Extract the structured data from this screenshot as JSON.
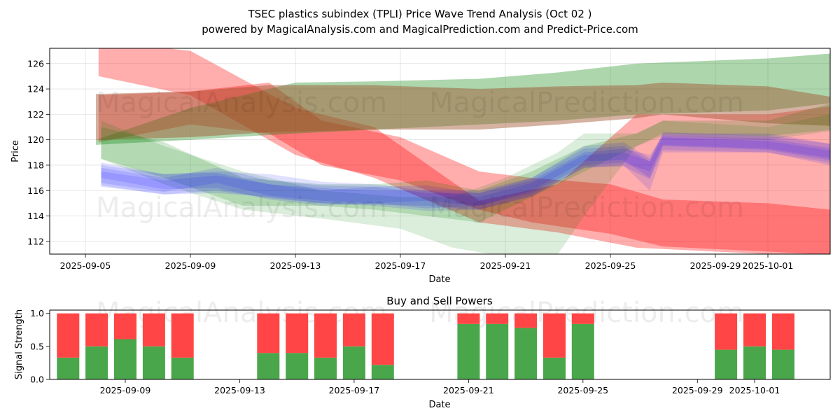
{
  "title_line1": "TSEC plastics subindex (TPLI) Price Wave Trend Analysis (Oct 02 )",
  "title_line2": "powered by MagicalAnalysis.com and MagicalPrediction.com and Predict-Price.com",
  "watermarks": [
    "MagicalAnalysis.com",
    "MagicalPrediction.com"
  ],
  "colors": {
    "red": "#ff0000",
    "green": "#008000",
    "blue": "#0000ff",
    "bar_green": "#4aa64a",
    "bar_red": "#ff4545"
  },
  "chart_data": [
    {
      "type": "area",
      "title": "",
      "xlabel": "Date",
      "ylabel": "Price",
      "x_ticks": [
        "2025-09-05",
        "2025-09-09",
        "2025-09-13",
        "2025-09-17",
        "2025-09-21",
        "2025-09-25",
        "2025-09-29",
        "2025-10-01"
      ],
      "y_ticks": [
        112,
        114,
        116,
        118,
        120,
        122,
        124,
        126
      ],
      "xlim": [
        "2025-09-03.6",
        "2025-10-03.8"
      ],
      "ylim": [
        111.0,
        127.2
      ],
      "grid": true,
      "bands": [
        {
          "color": "red",
          "opacity": 0.32,
          "x": [
            4.5,
            8,
            12,
            15,
            19,
            22,
            25,
            30,
            33.7
          ],
          "upper": [
            127.8,
            127.0,
            122.5,
            121.0,
            115.2,
            116.5,
            122.0,
            122.0,
            123.0
          ],
          "lower": [
            125.0,
            123.5,
            118.8,
            117.0,
            113.5,
            112.7,
            111.5,
            111.0,
            110.6
          ]
        },
        {
          "color": "red",
          "opacity": 0.32,
          "x": [
            4.5,
            8,
            11,
            13,
            16,
            19,
            21,
            24,
            26,
            30,
            33.8
          ],
          "upper": [
            123.5,
            123.8,
            124.5,
            121.5,
            120.2,
            117.5,
            117.0,
            116.5,
            115.3,
            115.0,
            114.2
          ],
          "lower": [
            119.8,
            121.2,
            120.5,
            118.0,
            116.8,
            114.5,
            113.5,
            112.6,
            111.6,
            111.2,
            110.8
          ]
        },
        {
          "color": "green",
          "opacity": 0.32,
          "x": [
            4.4,
            8,
            12,
            15,
            19,
            22,
            25,
            30,
            33.7
          ],
          "upper": [
            120.0,
            122.5,
            124.5,
            124.6,
            124.8,
            125.3,
            126.0,
            126.4,
            127.0
          ],
          "lower": [
            119.6,
            120.0,
            120.5,
            120.8,
            121.2,
            121.5,
            122.0,
            122.3,
            123.2
          ]
        },
        {
          "color": "brown",
          "opacity": 0.45,
          "x": [
            4.4,
            8,
            11,
            15,
            19,
            22,
            25,
            26,
            30,
            33.5
          ],
          "upper": [
            123.6,
            123.8,
            124.3,
            124.3,
            124.0,
            124.2,
            124.3,
            124.5,
            124.2,
            123.0
          ],
          "lower": [
            120.0,
            120.2,
            120.6,
            120.8,
            120.8,
            121.2,
            121.7,
            122.0,
            121.3,
            121.0
          ]
        },
        {
          "color": "green",
          "opacity": 0.14,
          "x": [
            4.6,
            7,
            10,
            13,
            16,
            18,
            20,
            22,
            23,
            25,
            26,
            30,
            33.5
          ],
          "upper": [
            121.5,
            119.5,
            117.5,
            116.0,
            115.5,
            115.5,
            117.0,
            119.0,
            120.5,
            120.5,
            121.5,
            121.0,
            122.5
          ],
          "lower": [
            118.5,
            116.5,
            114.5,
            113.8,
            113.0,
            111.5,
            110.8,
            111.0,
            114.0,
            119.5,
            120.3,
            120.0,
            121.0
          ]
        },
        {
          "color": "green",
          "opacity": 0.18,
          "x": [
            4.6,
            7,
            10,
            13,
            15,
            17,
            19,
            21,
            23,
            25,
            26,
            30,
            33.5
          ],
          "upper": [
            121.0,
            119.8,
            117.0,
            116.5,
            116.5,
            116.8,
            116.0,
            117.5,
            119.5,
            120.5,
            121.5,
            121.5,
            123.5
          ],
          "lower": [
            118.5,
            117.0,
            114.8,
            114.8,
            114.5,
            114.0,
            113.5,
            115.5,
            117.5,
            119.5,
            120.5,
            120.3,
            121.0
          ]
        },
        {
          "color": "blue",
          "opacity": 0.12,
          "x": [
            4.6,
            7,
            9,
            11,
            13,
            15,
            17,
            19,
            21,
            23,
            24.5,
            25.5,
            26,
            30,
            33.5
          ],
          "upper": [
            118.0,
            117.3,
            117.5,
            117.3,
            116.7,
            116.5,
            116.0,
            116.0,
            117.0,
            119.5,
            119.8,
            118.5,
            120.5,
            120.5,
            119.3
          ],
          "lower": [
            116.3,
            115.7,
            115.8,
            115.5,
            115.0,
            114.8,
            114.4,
            114.5,
            115.5,
            117.8,
            118.0,
            116.0,
            119.0,
            119.0,
            117.5
          ]
        },
        {
          "color": "blue",
          "opacity": 0.12,
          "x": [
            4.6,
            7,
            9,
            11,
            13,
            15,
            17,
            19,
            21,
            23,
            24.5,
            25.5,
            26,
            30,
            33.5
          ],
          "upper": [
            117.8,
            117.0,
            117.8,
            116.8,
            116.4,
            116.3,
            116.4,
            115.8,
            116.8,
            119.0,
            119.3,
            118.8,
            120.3,
            120.1,
            119.0
          ],
          "lower": [
            116.6,
            115.9,
            116.6,
            115.6,
            115.2,
            115.0,
            115.2,
            114.8,
            115.8,
            118.0,
            118.2,
            117.5,
            119.5,
            119.2,
            118.0
          ]
        },
        {
          "color": "blue",
          "opacity": 0.12,
          "x": [
            4.6,
            7,
            9,
            11,
            13,
            15,
            17,
            19,
            21,
            23,
            24.5,
            25.5,
            26,
            30,
            33.5
          ],
          "upper": [
            118.2,
            117.3,
            117.4,
            116.5,
            116.0,
            116.3,
            115.8,
            115.8,
            117.0,
            119.3,
            119.5,
            118.3,
            120.6,
            120.3,
            119.4
          ],
          "lower": [
            117.0,
            116.1,
            116.2,
            115.3,
            114.8,
            115.0,
            114.6,
            114.8,
            116.0,
            118.3,
            118.4,
            117.0,
            119.6,
            119.3,
            118.2
          ]
        },
        {
          "color": "blue",
          "opacity": 0.12,
          "x": [
            4.6,
            7,
            9,
            11,
            13,
            15,
            17,
            19,
            21,
            23,
            24.5,
            25.5,
            26,
            30,
            33.5
          ],
          "upper": [
            117.5,
            116.8,
            117.2,
            116.5,
            116.2,
            116.0,
            116.0,
            115.5,
            116.6,
            118.8,
            119.0,
            118.3,
            120.2,
            119.9,
            118.8
          ],
          "lower": [
            116.4,
            115.7,
            116.0,
            115.4,
            115.0,
            114.9,
            114.8,
            114.5,
            115.6,
            117.8,
            117.9,
            116.9,
            119.2,
            119.0,
            117.8
          ]
        }
      ],
      "watermarks_rows": 2
    },
    {
      "type": "bar",
      "title": "Buy and Sell Powers",
      "xlabel": "Date",
      "ylabel": "Signal Strength",
      "x_ticks": [
        "2025-09-09",
        "2025-09-13",
        "2025-09-17",
        "2025-09-21",
        "2025-09-25",
        "2025-09-29",
        "2025-10-01"
      ],
      "y_ticks": [
        "0.0",
        "0.5",
        "1.0"
      ],
      "ylim": [
        0,
        1.05
      ],
      "categories": [
        "2025-09-07",
        "2025-09-08",
        "2025-09-09",
        "2025-09-10",
        "2025-09-11",
        "2025-09-14",
        "2025-09-15",
        "2025-09-16",
        "2025-09-17",
        "2025-09-18",
        "2025-09-21",
        "2025-09-22",
        "2025-09-23",
        "2025-09-24",
        "2025-09-25",
        "2025-09-30",
        "2025-10-01",
        "2025-10-02"
      ],
      "series": [
        {
          "name": "Buy",
          "color": "green",
          "values": [
            0.33,
            0.5,
            0.61,
            0.5,
            0.33,
            0.4,
            0.4,
            0.33,
            0.5,
            0.22,
            0.84,
            0.84,
            0.78,
            0.33,
            0.84,
            0.45,
            0.5,
            0.45
          ]
        },
        {
          "name": "Sell",
          "color": "red",
          "values": [
            0.67,
            0.5,
            0.39,
            0.5,
            0.67,
            0.6,
            0.6,
            0.67,
            0.5,
            0.78,
            0.16,
            0.16,
            0.22,
            0.67,
            0.16,
            0.55,
            0.5,
            0.55
          ]
        }
      ]
    }
  ]
}
